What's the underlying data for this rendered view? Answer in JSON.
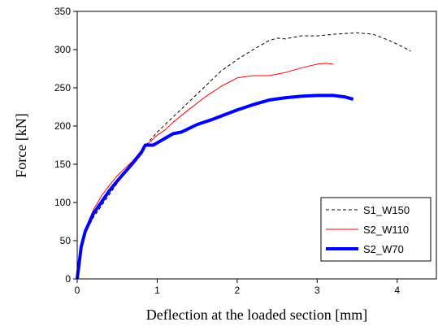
{
  "chart_data": {
    "type": "line",
    "x_label": "Deflection at the loaded section [mm]",
    "y_label": "Force [kN]",
    "xlim": [
      0,
      4.5
    ],
    "xticks": [
      0,
      1,
      2,
      3,
      4
    ],
    "ylim": [
      0,
      350
    ],
    "yticks": [
      0,
      50,
      100,
      150,
      200,
      250,
      300,
      350
    ],
    "legend_position": "lower right",
    "series": [
      {
        "name": "S1_W150",
        "color": "#000000",
        "line_style": "dashed",
        "line_width": 1,
        "x": [
          0,
          0.05,
          0.1,
          0.2,
          0.3,
          0.4,
          0.5,
          0.6,
          0.7,
          0.8,
          0.9,
          1.0,
          1.2,
          1.4,
          1.6,
          1.8,
          2.0,
          2.2,
          2.4,
          2.5,
          2.6,
          2.8,
          3.0,
          3.2,
          3.5,
          3.7,
          3.9,
          4.1,
          4.17
        ],
        "values": [
          0,
          40,
          60,
          80,
          95,
          110,
          125,
          140,
          155,
          168,
          180,
          192,
          212,
          232,
          252,
          272,
          287,
          300,
          312,
          315,
          314,
          318,
          318,
          320,
          322,
          320,
          312,
          302,
          298
        ]
      },
      {
        "name": "S2_W110",
        "color": "#ff0000",
        "line_style": "solid",
        "line_width": 1,
        "x": [
          0,
          0.05,
          0.1,
          0.2,
          0.3,
          0.4,
          0.5,
          0.6,
          0.7,
          0.8,
          0.9,
          1.0,
          1.1,
          1.2,
          1.4,
          1.6,
          1.8,
          2.0,
          2.2,
          2.4,
          2.6,
          2.8,
          3.0,
          3.1,
          3.2
        ],
        "values": [
          0,
          45,
          65,
          90,
          108,
          122,
          135,
          145,
          155,
          168,
          178,
          188,
          195,
          205,
          222,
          238,
          252,
          263,
          266,
          266,
          270,
          276,
          281,
          282,
          281
        ]
      },
      {
        "name": "S2_W70",
        "color": "#0000ff",
        "line_style": "solid",
        "line_width": 4,
        "x": [
          0,
          0.05,
          0.1,
          0.2,
          0.3,
          0.4,
          0.5,
          0.6,
          0.7,
          0.8,
          0.85,
          0.95,
          1.0,
          1.1,
          1.2,
          1.3,
          1.5,
          1.7,
          2.0,
          2.2,
          2.4,
          2.6,
          2.8,
          3.0,
          3.2,
          3.35,
          3.45
        ],
        "values": [
          0,
          42,
          62,
          85,
          100,
          115,
          128,
          140,
          152,
          165,
          175,
          175,
          178,
          184,
          190,
          192,
          202,
          209,
          221,
          228,
          234,
          237,
          239,
          240,
          240,
          238,
          235
        ]
      }
    ]
  }
}
